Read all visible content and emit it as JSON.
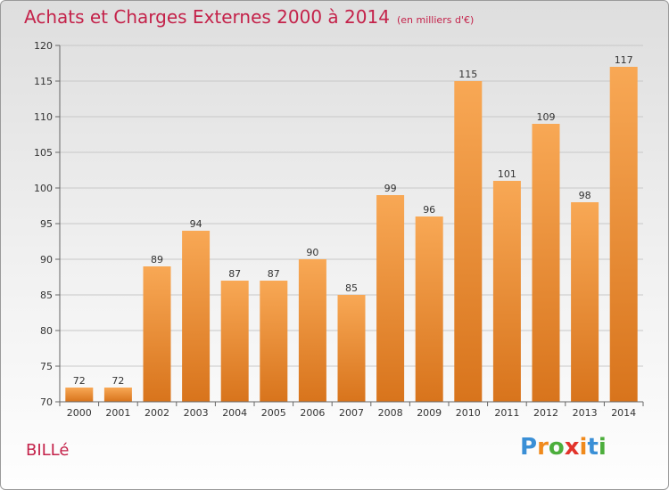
{
  "title": "Achats et Charges Externes 2000 à 2014",
  "subtitle": "(en milliers d'€)",
  "place_name": "BILLé",
  "logo": {
    "text": "Proxiti",
    "letters": [
      "P",
      "r",
      "o",
      "x",
      "i",
      "t",
      "i"
    ],
    "colors": [
      "#3a8fd6",
      "#f08a1c",
      "#4cae3c",
      "#e2332b",
      "#f08a1c",
      "#3a8fd6",
      "#4cae3c"
    ]
  },
  "colors": {
    "title": "#c4224a",
    "bar_light": "#f8a855",
    "bar_dark": "#d8741c",
    "axis": "#666666",
    "grid": "#c8c8c8"
  },
  "chart_data": {
    "type": "bar",
    "title": "Achats et Charges Externes 2000 à 2014",
    "subtitle": "(en milliers d'€)",
    "categories": [
      "2000",
      "2001",
      "2002",
      "2003",
      "2004",
      "2005",
      "2006",
      "2007",
      "2008",
      "2009",
      "2010",
      "2011",
      "2012",
      "2013",
      "2014"
    ],
    "values": [
      72,
      72,
      89,
      94,
      87,
      87,
      90,
      85,
      99,
      96,
      115,
      101,
      109,
      98,
      117
    ],
    "ylim": [
      70,
      120
    ],
    "yticks": [
      70,
      75,
      80,
      85,
      90,
      95,
      100,
      105,
      110,
      115,
      120
    ],
    "grid": true,
    "legend": "none"
  }
}
